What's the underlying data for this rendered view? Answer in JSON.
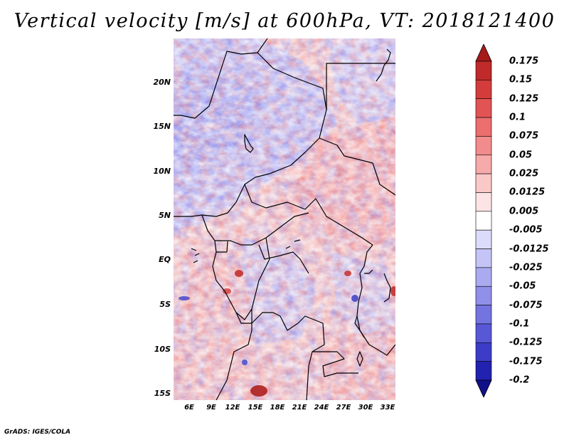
{
  "title": "Vertical velocity [m/s] at 600hPa, VT: 2018121400",
  "map": {
    "lat_labels": [
      "20N",
      "15N",
      "10N",
      "5N",
      "EQ",
      "5S",
      "10S",
      "15S"
    ],
    "lon_labels": [
      "6E",
      "9E",
      "12E",
      "15E",
      "18E",
      "21E",
      "24E",
      "27E",
      "30E",
      "33E"
    ],
    "lat_range": [
      -16,
      24.5
    ],
    "lon_range": [
      4,
      33
    ]
  },
  "colorbar": {
    "labels": [
      "0.175",
      "0.15",
      "0.125",
      "0.1",
      "0.075",
      "0.05",
      "0.025",
      "0.0125",
      "0.005",
      "-0.005",
      "-0.0125",
      "-0.025",
      "-0.05",
      "-0.075",
      "-0.1",
      "-0.125",
      "-0.175",
      "-0.2"
    ],
    "colors": [
      "#a61a1a",
      "#c02a2a",
      "#d43c3c",
      "#e25454",
      "#ec6e6e",
      "#f28c8c",
      "#f7aaaa",
      "#fbc8c8",
      "#fde4e4",
      "#ffffff",
      "#dcdcfa",
      "#c4c4f6",
      "#aaaaf0",
      "#9090ea",
      "#7474e0",
      "#5858d6",
      "#3c3cc8",
      "#2222b0",
      "#10108a"
    ]
  },
  "credit": "GrADS: IGES/COLA"
}
